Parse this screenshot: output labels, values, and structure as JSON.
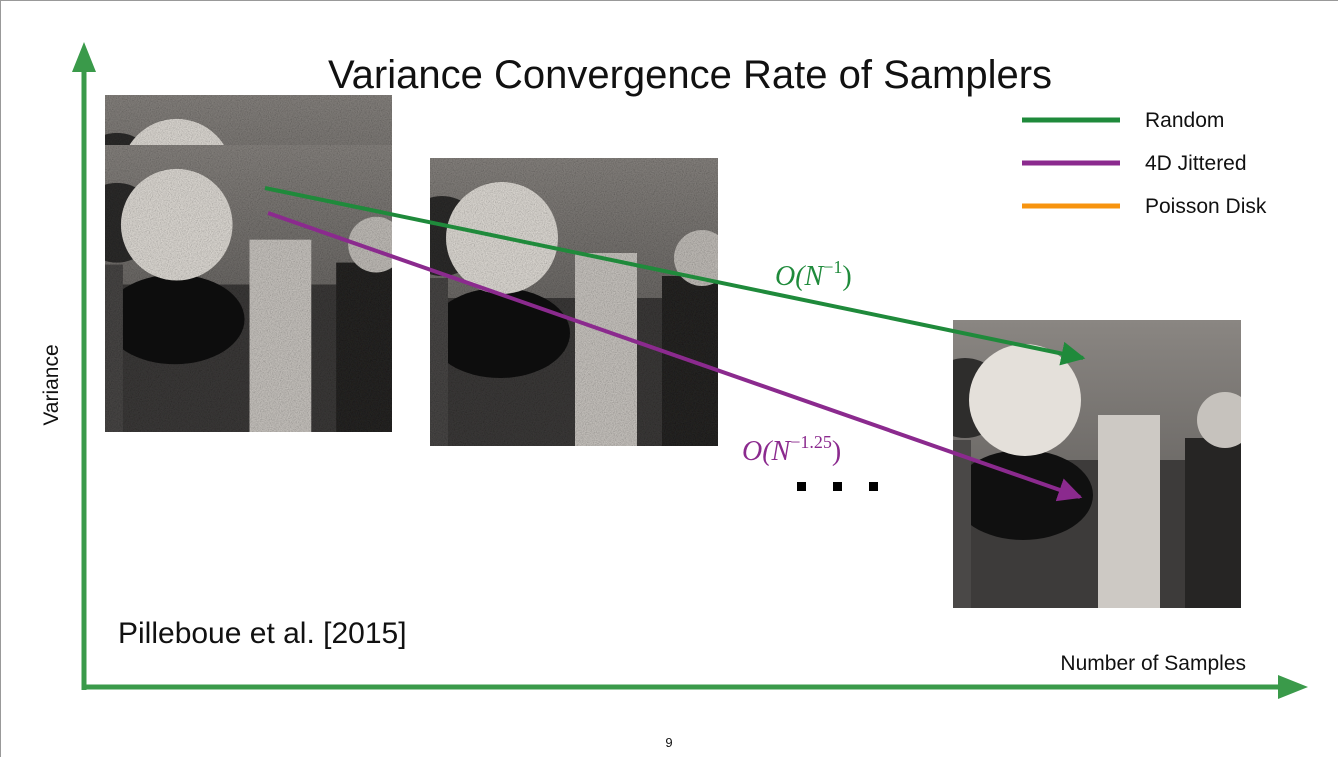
{
  "title": "Variance Convergence Rate of Samplers",
  "y_axis_label": "Variance",
  "x_axis_label": "Number of Samples",
  "legend": [
    {
      "label": "Random",
      "color": "#1f8a3b"
    },
    {
      "label": "4D Jittered",
      "color": "#8b2a8e"
    },
    {
      "label": "Poisson Disk",
      "color": "#f7940f"
    }
  ],
  "annotations": [
    {
      "base": "O(N",
      "exponent": "−1",
      "close": ")",
      "color": "#1f8a3b"
    },
    {
      "base": "O(N",
      "exponent": "−1.25",
      "close": ")",
      "color": "#8b2a8e"
    }
  ],
  "citation": "Pilleboue et al. [2015]",
  "page_number": "9"
}
